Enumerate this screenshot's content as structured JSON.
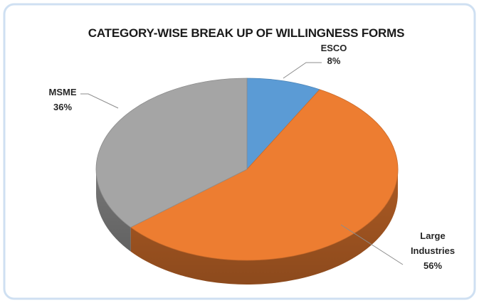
{
  "chart_data": {
    "type": "pie",
    "title": "CATEGORY-WISE BREAK UP OF WILLINGNESS FORMS",
    "style": "3d",
    "slices": [
      {
        "label": "ESCO",
        "value": 8,
        "value_label": "8%",
        "color": "#5b9bd5"
      },
      {
        "label": "Large Industries",
        "value": 56,
        "value_label": "56%",
        "color": "#ed7d31"
      },
      {
        "label": "MSME",
        "value": 36,
        "value_label": "36%",
        "color": "#a5a5a5"
      }
    ],
    "legend": "none",
    "data_labels": "outside with leader lines"
  }
}
